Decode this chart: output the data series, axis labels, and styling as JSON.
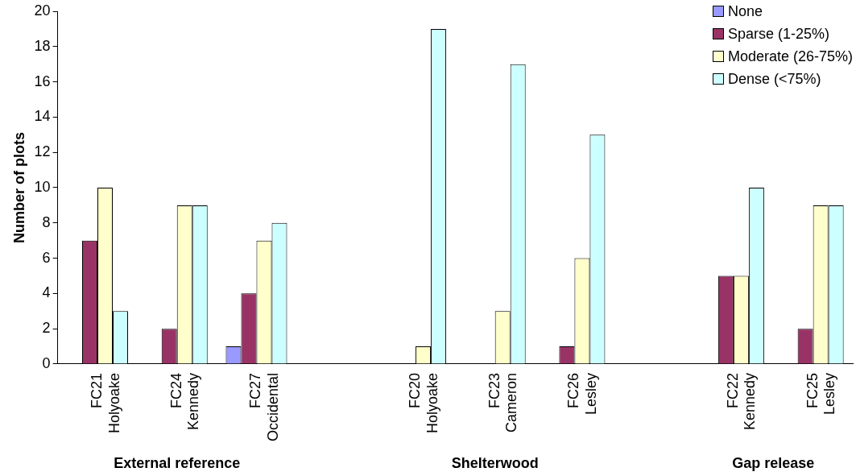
{
  "chart_data": {
    "type": "bar",
    "ylabel": "Number of plots",
    "categories": [
      "FC21\nHolyoake",
      "FC24\nKennedy",
      "FC27\nOccidental",
      null,
      "FC20\nHolyoake",
      "FC23\nCameron",
      "FC26\nLesley",
      null,
      "FC22\nKennedy",
      "FC25\nLesley"
    ],
    "series": [
      {
        "name": "None",
        "color": "#9999ff",
        "values": [
          0,
          0,
          1,
          null,
          0,
          0,
          0,
          null,
          0,
          0
        ]
      },
      {
        "name": "Sparse (1-25%)",
        "color": "#993366",
        "values": [
          7,
          2,
          4,
          null,
          0,
          0,
          1,
          null,
          5,
          2
        ]
      },
      {
        "name": "Moderate (26-75%)",
        "color": "#ffffcc",
        "values": [
          10,
          9,
          7,
          null,
          1,
          3,
          6,
          null,
          5,
          9
        ]
      },
      {
        "name": "Dense (<75%)",
        "color": "#ccffff",
        "values": [
          3,
          9,
          8,
          null,
          19,
          17,
          13,
          null,
          10,
          9
        ]
      }
    ],
    "ylim": [
      0,
      20
    ],
    "yticks": [
      0,
      2,
      4,
      6,
      8,
      10,
      12,
      14,
      16,
      18,
      20
    ],
    "grid": false,
    "legend": "top right",
    "annotations": [
      "External reference",
      "Shelterwood",
      "Gap release"
    ]
  }
}
